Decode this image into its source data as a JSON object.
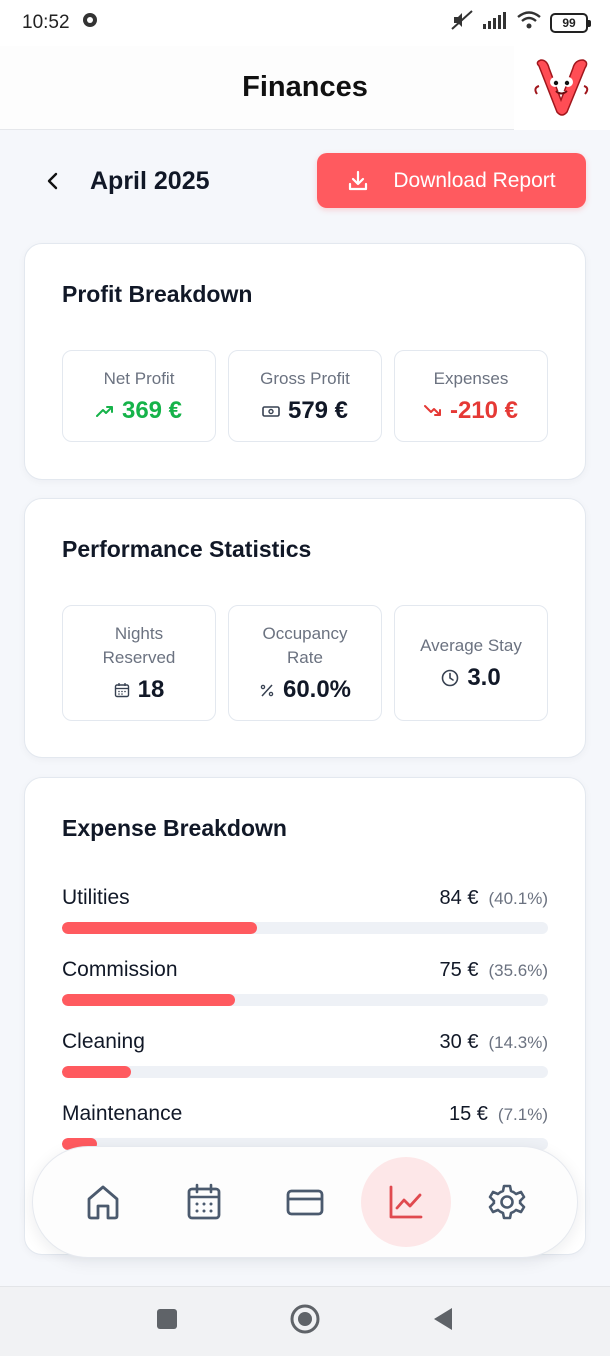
{
  "status_bar": {
    "time": "10:52",
    "battery": "99"
  },
  "header": {
    "title": "Finances"
  },
  "month_nav": {
    "label": "April 2025",
    "download_label": "Download Report"
  },
  "profit": {
    "title": "Profit Breakdown",
    "net_label": "Net Profit",
    "net_value": "369 €",
    "gross_label": "Gross Profit",
    "gross_value": "579 €",
    "expenses_label": "Expenses",
    "expenses_value": "-210 €"
  },
  "performance": {
    "title": "Performance Statistics",
    "nights_label_line1": "Nights",
    "nights_label_line2": "Reserved",
    "nights_value": "18",
    "occupancy_label_line1": "Occupancy",
    "occupancy_label_line2": "Rate",
    "occupancy_value": "60.0%",
    "stay_label": "Average Stay",
    "stay_value": "3.0"
  },
  "expenses": {
    "title": "Expense Breakdown",
    "items": [
      {
        "name": "Utilities",
        "amount": "84 €",
        "percent": "(40.1%)",
        "fraction": 0.401
      },
      {
        "name": "Commission",
        "amount": "75 €",
        "percent": "(35.6%)",
        "fraction": 0.356
      },
      {
        "name": "Cleaning",
        "amount": "30 €",
        "percent": "(14.3%)",
        "fraction": 0.143
      },
      {
        "name": "Maintenance",
        "amount": "15 €",
        "percent": "(7.1%)",
        "fraction": 0.071
      }
    ]
  },
  "bottom_nav": {
    "items": [
      "home-icon",
      "calendar-icon",
      "credit-card-icon",
      "chart-icon",
      "settings-icon"
    ],
    "active": "chart-icon"
  },
  "colors": {
    "accent": "#ff5a5f",
    "positive": "#16b34a",
    "negative": "#e53935"
  }
}
